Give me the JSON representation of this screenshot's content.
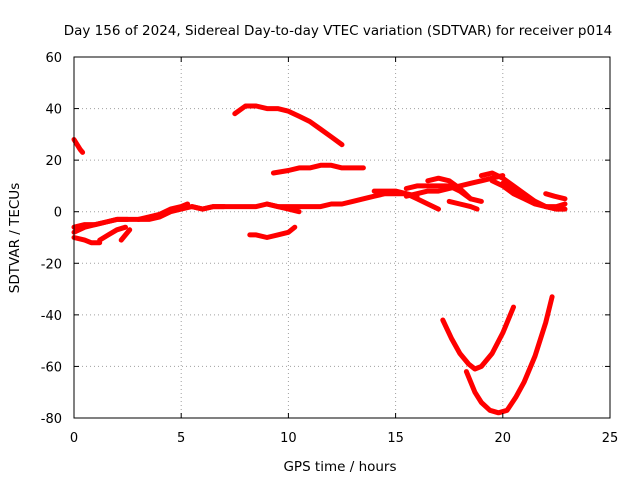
{
  "chart_data": {
    "type": "scatter",
    "title": "Day 156 of 2024, Sidereal Day-to-day VTEC variation (SDTVAR) for receiver p014",
    "xlabel": "GPS time / hours",
    "ylabel": "SDTVAR / TECUs",
    "xlim": [
      0,
      25
    ],
    "ylim": [
      -80,
      60
    ],
    "xticks": [
      0,
      5,
      10,
      15,
      20,
      25
    ],
    "yticks": [
      -80,
      -60,
      -40,
      -20,
      0,
      20,
      40,
      60
    ],
    "grid": true,
    "legend": "none",
    "marker_color": "#ff0000",
    "series": [
      {
        "x": [
          0.0,
          0.15,
          0.3,
          0.4
        ],
        "y": [
          28,
          26,
          24,
          23
        ]
      },
      {
        "x": [
          0.0,
          0.5,
          1.0,
          1.5,
          2.0,
          2.5,
          3.0,
          3.5,
          4.0,
          4.5,
          5.0,
          5.5,
          6.0,
          6.5,
          7.0,
          7.5,
          8.0,
          8.5,
          9.0,
          9.5,
          10.0,
          10.5,
          11.0,
          11.5,
          12.0,
          12.5,
          13.0,
          13.5,
          14.0,
          14.5,
          15.0,
          15.5,
          16.0
        ],
        "y": [
          -6,
          -5,
          -5,
          -4,
          -3,
          -3,
          -3,
          -3,
          -2,
          0,
          1,
          2,
          1,
          2,
          2,
          2,
          2,
          2,
          3,
          2,
          2,
          2,
          2,
          2,
          3,
          3,
          4,
          5,
          6,
          7,
          7,
          7,
          6
        ]
      },
      {
        "x": [
          0.0,
          0.5,
          1.0,
          1.5,
          2.0,
          2.5
        ],
        "y": [
          -8,
          -6,
          -5,
          -4,
          -3,
          -3
        ]
      },
      {
        "x": [
          0.0,
          0.5,
          0.8,
          1.2
        ],
        "y": [
          -10,
          -11,
          -12,
          -12
        ]
      },
      {
        "x": [
          1.2,
          1.6,
          2.0,
          2.4
        ],
        "y": [
          -11,
          -9,
          -7,
          -6
        ]
      },
      {
        "x": [
          2.2,
          2.4,
          2.6
        ],
        "y": [
          -11,
          -9,
          -7
        ]
      },
      {
        "x": [
          3.0,
          3.5,
          4.0,
          4.5,
          5.0,
          5.3
        ],
        "y": [
          -3,
          -2,
          -1,
          1,
          2,
          3
        ]
      },
      {
        "x": [
          5.5,
          6.0,
          6.5,
          7.0
        ],
        "y": [
          2,
          1,
          2,
          2
        ]
      },
      {
        "x": [
          7.5,
          8.0,
          8.5,
          9.0,
          9.5,
          10.0,
          10.5,
          11.0,
          11.5,
          12.0,
          12.5
        ],
        "y": [
          38,
          41,
          41,
          40,
          40,
          39,
          37,
          35,
          32,
          29,
          26
        ]
      },
      {
        "x": [
          9.3,
          10.0,
          10.5,
          11.0,
          11.5,
          12.0,
          12.5,
          13.0,
          13.5
        ],
        "y": [
          15,
          16,
          17,
          17,
          18,
          18,
          17,
          17,
          17
        ]
      },
      {
        "x": [
          8.2,
          8.5,
          9.0,
          9.5,
          10.0,
          10.3
        ],
        "y": [
          -9,
          -9,
          -10,
          -9,
          -8,
          -6
        ]
      },
      {
        "x": [
          9.0,
          9.5,
          10.0,
          10.5
        ],
        "y": [
          3,
          2,
          1,
          0
        ]
      },
      {
        "x": [
          14.0,
          14.5,
          15.0,
          15.5,
          16.0,
          16.5,
          17.0
        ],
        "y": [
          8,
          8,
          8,
          7,
          5,
          3,
          1
        ]
      },
      {
        "x": [
          15.5,
          16.0,
          16.5,
          17.0,
          17.5,
          18.0,
          18.5,
          19.0,
          19.5,
          20.0
        ],
        "y": [
          6,
          7,
          8,
          8,
          9,
          10,
          11,
          12,
          13,
          14
        ]
      },
      {
        "x": [
          16.5,
          17.0,
          17.5,
          18.0,
          18.5
        ],
        "y": [
          12,
          13,
          12,
          9,
          5
        ]
      },
      {
        "x": [
          15.5,
          16.0,
          16.5,
          17.0,
          17.5,
          18.0,
          18.5,
          19.0
        ],
        "y": [
          9,
          10,
          10,
          10,
          10,
          8,
          5,
          4
        ]
      },
      {
        "x": [
          17.5,
          18.0,
          18.5,
          18.8
        ],
        "y": [
          4,
          3,
          2,
          1
        ]
      },
      {
        "x": [
          19.0,
          19.5,
          20.0,
          20.5,
          21.0,
          21.5,
          22.0,
          22.5
        ],
        "y": [
          14,
          15,
          13,
          10,
          7,
          4,
          2,
          1
        ]
      },
      {
        "x": [
          19.5,
          20.0,
          20.5,
          21.0,
          21.5,
          22.0,
          22.5,
          22.9
        ],
        "y": [
          12,
          10,
          7,
          5,
          3,
          2,
          2,
          3
        ]
      },
      {
        "x": [
          20.0,
          20.5,
          21.0,
          21.5,
          22.0,
          22.5,
          22.9
        ],
        "y": [
          11,
          9,
          6,
          4,
          2,
          1,
          1
        ]
      },
      {
        "x": [
          22.0,
          22.4,
          22.9
        ],
        "y": [
          7,
          6,
          5
        ]
      },
      {
        "x": [
          17.2,
          17.6,
          18.0,
          18.4,
          18.7,
          19.0,
          19.5,
          20.0,
          20.5
        ],
        "y": [
          -42,
          -49,
          -55,
          -59,
          -61,
          -60,
          -55,
          -47,
          -37
        ]
      },
      {
        "x": [
          18.3,
          18.7,
          19.0,
          19.4,
          19.8,
          20.2,
          20.6,
          21.0,
          21.5,
          22.0,
          22.3
        ],
        "y": [
          -62,
          -70,
          -74,
          -77,
          -78,
          -77,
          -72,
          -66,
          -56,
          -43,
          -33
        ]
      }
    ]
  }
}
